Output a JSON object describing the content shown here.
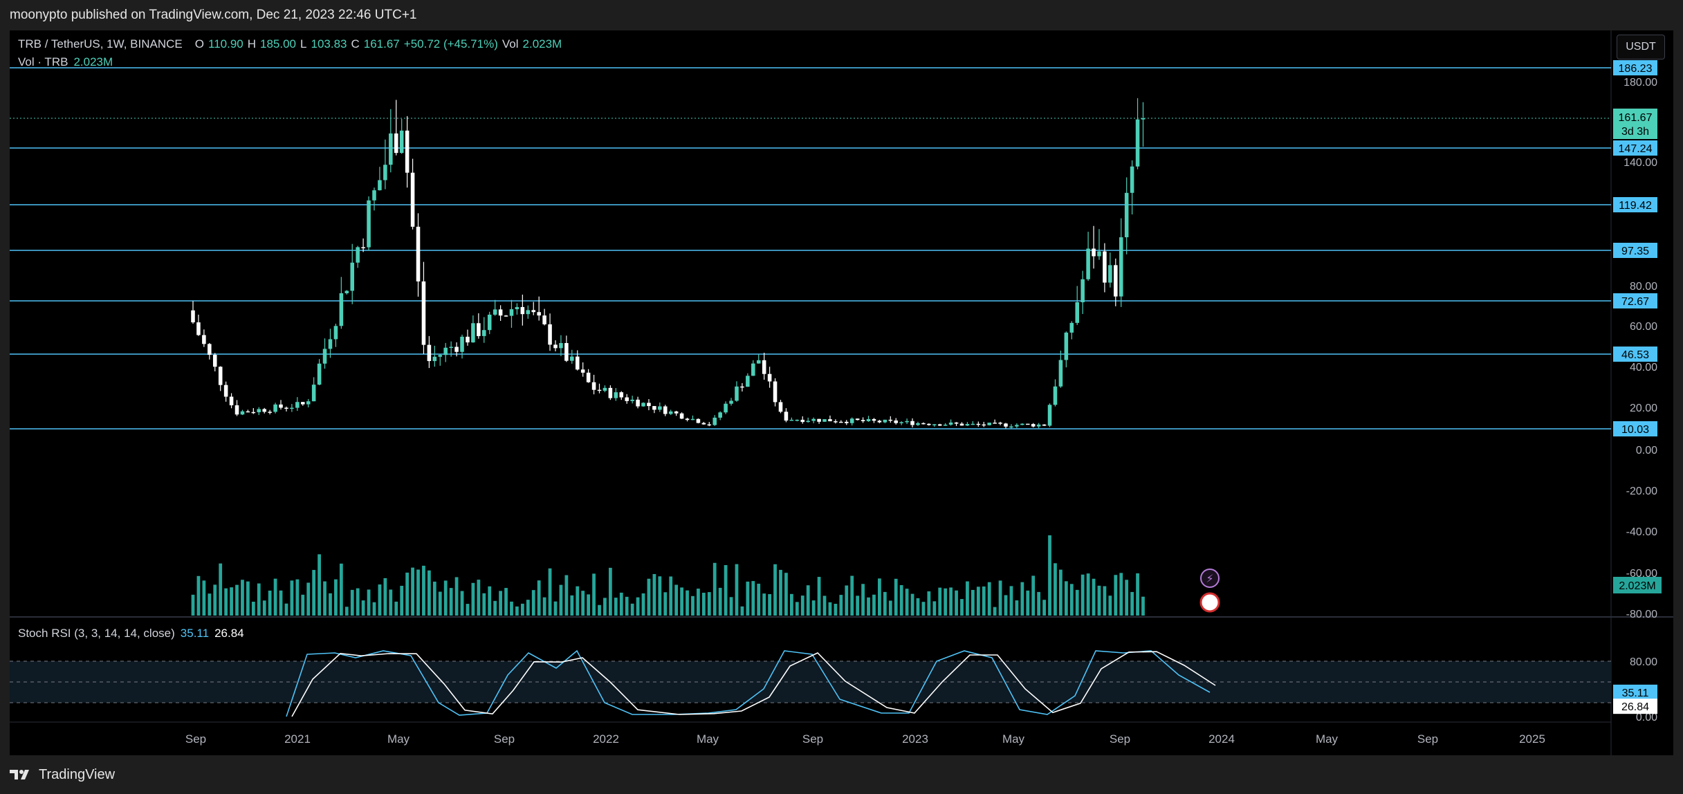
{
  "publish_bar": {
    "text": "moonypto published on TradingView.com, Dec 21, 2023 22:46 UTC+1"
  },
  "legend": {
    "symbol": "TRB / TetherUS, 1W, BINANCE",
    "o_label": "O",
    "o": "110.90",
    "h_label": "H",
    "h": "185.00",
    "l_label": "L",
    "l": "103.83",
    "c_label": "C",
    "c": "161.67",
    "change": "+50.72 (+45.71%)",
    "vol_label": "Vol",
    "vol": "2.023M"
  },
  "vol_legend": {
    "label": "Vol · TRB",
    "value": "2.023M"
  },
  "stoch_legend": {
    "label": "Stoch RSI (3, 3, 14, 14, close)",
    "k": "35.11",
    "d": "26.84"
  },
  "currency_button": "USDT",
  "footer": {
    "brand": "TradingView",
    "logo": "tradingview-logo-icon"
  },
  "colors": {
    "up": "#26a69a",
    "up_body": "#4dd0b8",
    "down": "#ffffff",
    "hline": "#4fc3f7",
    "k": "#4fc3f7",
    "d": "#ffffff"
  },
  "chart_data": [
    {
      "type": "candlestick",
      "title": "TRB / TetherUS, 1W, BINANCE",
      "x_ticks": [
        "Sep",
        "2021",
        "May",
        "Sep",
        "2022",
        "May",
        "Sep",
        "2023",
        "May",
        "Sep",
        "2024",
        "May",
        "Sep",
        "2025"
      ],
      "y_ticks": [
        "180.00",
        "140.00",
        "80.00",
        "60.00",
        "40.00",
        "20.00",
        "0.00",
        "-20.00",
        "-40.00",
        "-60.00",
        "-80.00"
      ],
      "horizontal_levels": [
        "186.23",
        "147.24",
        "119.42",
        "97.35",
        "72.67",
        "46.53",
        "10.03"
      ],
      "last_price": "161.67",
      "countdown": "3d 3h",
      "volume_label": "2.023M",
      "key_points": [
        {
          "date": "2020-08",
          "value": 68
        },
        {
          "date": "2020-10",
          "value": 18
        },
        {
          "date": "2021-01",
          "value": 22
        },
        {
          "date": "2021-05",
          "value": 165
        },
        {
          "date": "2021-06",
          "value": 42
        },
        {
          "date": "2021-10",
          "value": 72
        },
        {
          "date": "2022-01",
          "value": 30
        },
        {
          "date": "2022-06",
          "value": 12
        },
        {
          "date": "2022-08",
          "value": 44
        },
        {
          "date": "2022-09",
          "value": 15
        },
        {
          "date": "2023-05",
          "value": 12
        },
        {
          "date": "2023-08",
          "value": 12
        },
        {
          "date": "2023-10",
          "value": 100
        },
        {
          "date": "2023-11",
          "value": 80
        },
        {
          "date": "2023-12",
          "value": 161.67
        }
      ]
    },
    {
      "type": "line",
      "title": "Stoch RSI (3, 3, 14, 14, close)",
      "y_ticks": [
        "80.00",
        "0.00"
      ],
      "series": [
        {
          "name": "K",
          "last": 35.11
        },
        {
          "name": "D",
          "last": 26.84
        }
      ]
    }
  ]
}
